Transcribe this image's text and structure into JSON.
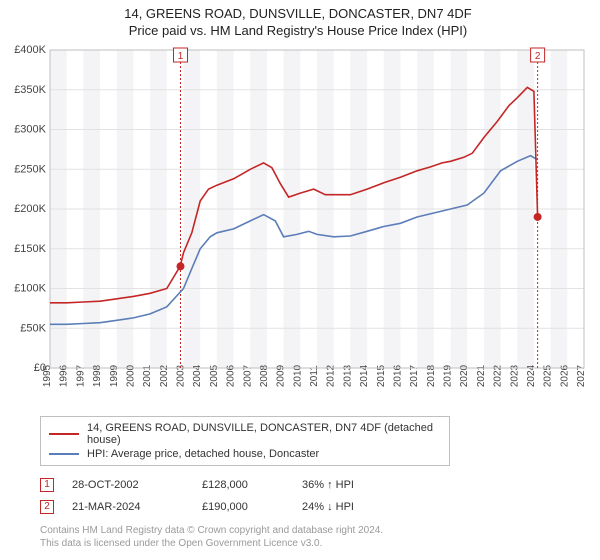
{
  "title_line1": "14, GREENS ROAD, DUNSVILLE, DONCASTER, DN7 4DF",
  "title_line2": "Price paid vs. HM Land Registry's House Price Index (HPI)",
  "chart": {
    "type": "line",
    "background_color": "#ffffff",
    "grid_color": "#e2e2e2",
    "border_color": "#bfbfbf",
    "plot_band_color": "#f4f4f6",
    "y": {
      "min": 0,
      "max": 400000,
      "step": 50000,
      "labels": [
        "£0",
        "£50K",
        "£100K",
        "£150K",
        "£200K",
        "£250K",
        "£300K",
        "£350K",
        "£400K"
      ],
      "fontsize": 11,
      "color": "#444444"
    },
    "x": {
      "min": 1995,
      "max": 2027,
      "step": 1,
      "labels": [
        "1995",
        "1996",
        "1997",
        "1998",
        "1999",
        "2000",
        "2001",
        "2002",
        "2003",
        "2004",
        "2005",
        "2006",
        "2007",
        "2008",
        "2009",
        "2010",
        "2011",
        "2012",
        "2013",
        "2014",
        "2015",
        "2016",
        "2017",
        "2018",
        "2019",
        "2020",
        "2021",
        "2022",
        "2023",
        "2024",
        "2025",
        "2026",
        "2027"
      ],
      "fontsize": 10,
      "color": "#444444"
    },
    "series": [
      {
        "name": "14, GREENS ROAD, DUNSVILLE, DONCASTER, DN7 4DF (detached house)",
        "color": "#c42626",
        "line_width": 1.6,
        "data": [
          [
            1995,
            82000
          ],
          [
            1996,
            82000
          ],
          [
            1997,
            83000
          ],
          [
            1998,
            84000
          ],
          [
            1999,
            87000
          ],
          [
            2000,
            90000
          ],
          [
            2001,
            94000
          ],
          [
            2002,
            100000
          ],
          [
            2002.8,
            128000
          ],
          [
            2003,
            145000
          ],
          [
            2003.5,
            170000
          ],
          [
            2004,
            210000
          ],
          [
            2004.5,
            225000
          ],
          [
            2005,
            230000
          ],
          [
            2006,
            238000
          ],
          [
            2007,
            250000
          ],
          [
            2007.8,
            258000
          ],
          [
            2008.3,
            252000
          ],
          [
            2008.8,
            232000
          ],
          [
            2009.3,
            215000
          ],
          [
            2010,
            220000
          ],
          [
            2010.8,
            225000
          ],
          [
            2011.5,
            218000
          ],
          [
            2012,
            218000
          ],
          [
            2013,
            218000
          ],
          [
            2014,
            225000
          ],
          [
            2015,
            233000
          ],
          [
            2016,
            240000
          ],
          [
            2017,
            248000
          ],
          [
            2017.8,
            253000
          ],
          [
            2018.5,
            258000
          ],
          [
            2019,
            260000
          ],
          [
            2019.8,
            265000
          ],
          [
            2020.3,
            270000
          ],
          [
            2021,
            290000
          ],
          [
            2021.8,
            310000
          ],
          [
            2022.5,
            330000
          ],
          [
            2023,
            340000
          ],
          [
            2023.6,
            353000
          ],
          [
            2024,
            348000
          ],
          [
            2024.22,
            190000
          ]
        ]
      },
      {
        "name": "HPI: Average price, detached house, Doncaster",
        "color": "#5b7db8",
        "line_width": 1.5,
        "data": [
          [
            1995,
            55000
          ],
          [
            1996,
            55000
          ],
          [
            1997,
            56000
          ],
          [
            1998,
            57000
          ],
          [
            1999,
            60000
          ],
          [
            2000,
            63000
          ],
          [
            2001,
            68000
          ],
          [
            2002,
            77000
          ],
          [
            2003,
            100000
          ],
          [
            2003.5,
            125000
          ],
          [
            2004,
            150000
          ],
          [
            2004.6,
            165000
          ],
          [
            2005,
            170000
          ],
          [
            2006,
            175000
          ],
          [
            2007,
            185000
          ],
          [
            2007.8,
            193000
          ],
          [
            2008.5,
            185000
          ],
          [
            2009,
            165000
          ],
          [
            2009.8,
            168000
          ],
          [
            2010.5,
            172000
          ],
          [
            2011,
            168000
          ],
          [
            2012,
            165000
          ],
          [
            2013,
            166000
          ],
          [
            2014,
            172000
          ],
          [
            2015,
            178000
          ],
          [
            2016,
            182000
          ],
          [
            2017,
            190000
          ],
          [
            2018,
            195000
          ],
          [
            2019,
            200000
          ],
          [
            2020,
            205000
          ],
          [
            2021,
            220000
          ],
          [
            2022,
            248000
          ],
          [
            2023,
            260000
          ],
          [
            2023.8,
            267000
          ],
          [
            2024.2,
            262000
          ]
        ]
      }
    ],
    "markers": [
      {
        "id": "1",
        "x": 2002.82,
        "y": 128000
      },
      {
        "id": "2",
        "x": 2024.22,
        "y": 190000
      }
    ]
  },
  "legend": {
    "border_color": "#bfbfbf",
    "items": [
      {
        "color": "#c42626",
        "label": "14, GREENS ROAD, DUNSVILLE, DONCASTER, DN7 4DF (detached house)"
      },
      {
        "color": "#5b7db8",
        "label": "HPI: Average price, detached house, Doncaster"
      }
    ]
  },
  "marker_table": [
    {
      "id": "1",
      "date": "28-OCT-2002",
      "price": "£128,000",
      "diff": "36% ↑ HPI"
    },
    {
      "id": "2",
      "date": "21-MAR-2024",
      "price": "£190,000",
      "diff": "24% ↓ HPI"
    }
  ],
  "footnote_line1": "Contains HM Land Registry data © Crown copyright and database right 2024.",
  "footnote_line2": "This data is licensed under the Open Government Licence v3.0."
}
